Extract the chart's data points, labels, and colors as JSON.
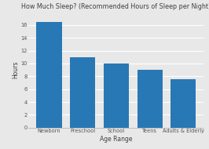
{
  "title": "How Much Sleep? (Recommended Hours of Sleep per Night)",
  "categories": [
    "Newborn",
    "Preschool",
    "School",
    "Teens",
    "Adults & Elderly"
  ],
  "values": [
    16.5,
    11,
    10,
    9,
    7.5
  ],
  "bar_color": "#2878b5",
  "xlabel": "Age Range",
  "ylabel": "Hours",
  "ylim": [
    0,
    18
  ],
  "yticks": [
    0,
    2,
    4,
    6,
    8,
    10,
    12,
    14,
    16
  ],
  "background_color": "#e8e8e8",
  "plot_bg_color": "#e8e8e8",
  "title_fontsize": 5.8,
  "axis_label_fontsize": 5.5,
  "tick_fontsize": 4.8
}
